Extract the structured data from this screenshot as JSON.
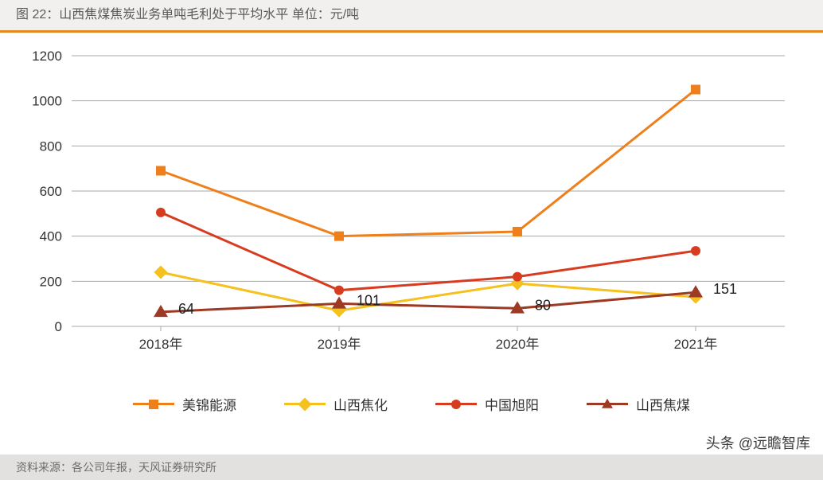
{
  "title": "图 22：山西焦煤焦炭业务单吨毛利处于平均水平  单位：元/吨",
  "source": "资料来源：各公司年报，天风证券研究所",
  "watermark": "头条 @远瞻智库",
  "chart": {
    "type": "line",
    "background_color": "#ffffff",
    "grid_color": "#a7a7a7",
    "axis_color": "#a7a7a7",
    "ylim": [
      0,
      1200
    ],
    "ytick_step": 200,
    "yticks": [
      0,
      200,
      400,
      600,
      800,
      1000,
      1200
    ],
    "categories": [
      "2018年",
      "2019年",
      "2020年",
      "2021年"
    ],
    "line_width": 3,
    "marker_size": 12,
    "label_fontsize": 17,
    "value_label_fontsize": 18,
    "series": [
      {
        "name": "美锦能源",
        "color": "#ee7f1a",
        "marker": "square",
        "values": [
          690,
          400,
          420,
          1050
        ]
      },
      {
        "name": "山西焦化",
        "color": "#f5c11e",
        "marker": "diamond",
        "values": [
          240,
          70,
          190,
          130
        ]
      },
      {
        "name": "中国旭阳",
        "color": "#d73c20",
        "marker": "circle",
        "values": [
          505,
          160,
          220,
          335
        ]
      },
      {
        "name": "山西焦煤",
        "color": "#9d3a24",
        "marker": "triangle",
        "values": [
          64,
          101,
          80,
          151
        ],
        "show_values": true
      }
    ]
  },
  "legend": {
    "items": [
      {
        "label": "美锦能源",
        "color": "#ee7f1a",
        "marker": "square"
      },
      {
        "label": "山西焦化",
        "color": "#f5c11e",
        "marker": "diamond"
      },
      {
        "label": "中国旭阳",
        "color": "#d73c20",
        "marker": "circle"
      },
      {
        "label": "山西焦煤",
        "color": "#9d3a24",
        "marker": "triangle"
      }
    ]
  }
}
